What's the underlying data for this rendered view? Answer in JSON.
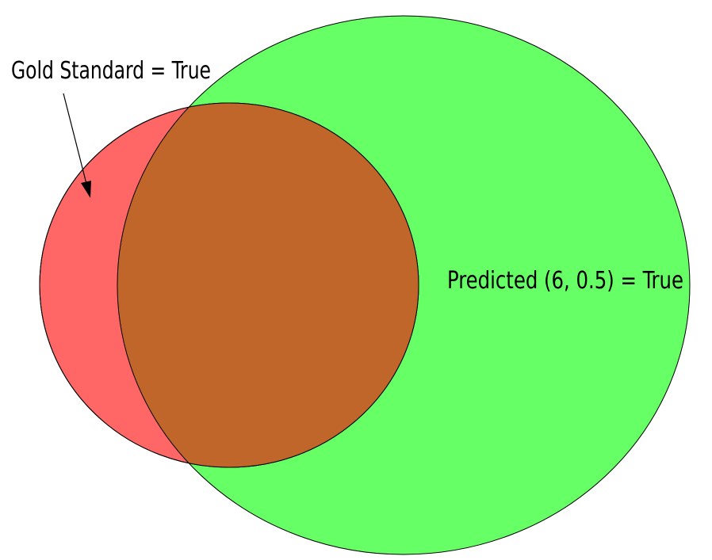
{
  "labels": {
    "gold_standard": "Gold Standard = True",
    "predicted": "Predicted (6, 0.5) = True"
  },
  "colors": {
    "gold_only": "#ff6666",
    "predicted": "#66ff66",
    "overlap": "#c0662a",
    "outline": "#000000"
  }
}
